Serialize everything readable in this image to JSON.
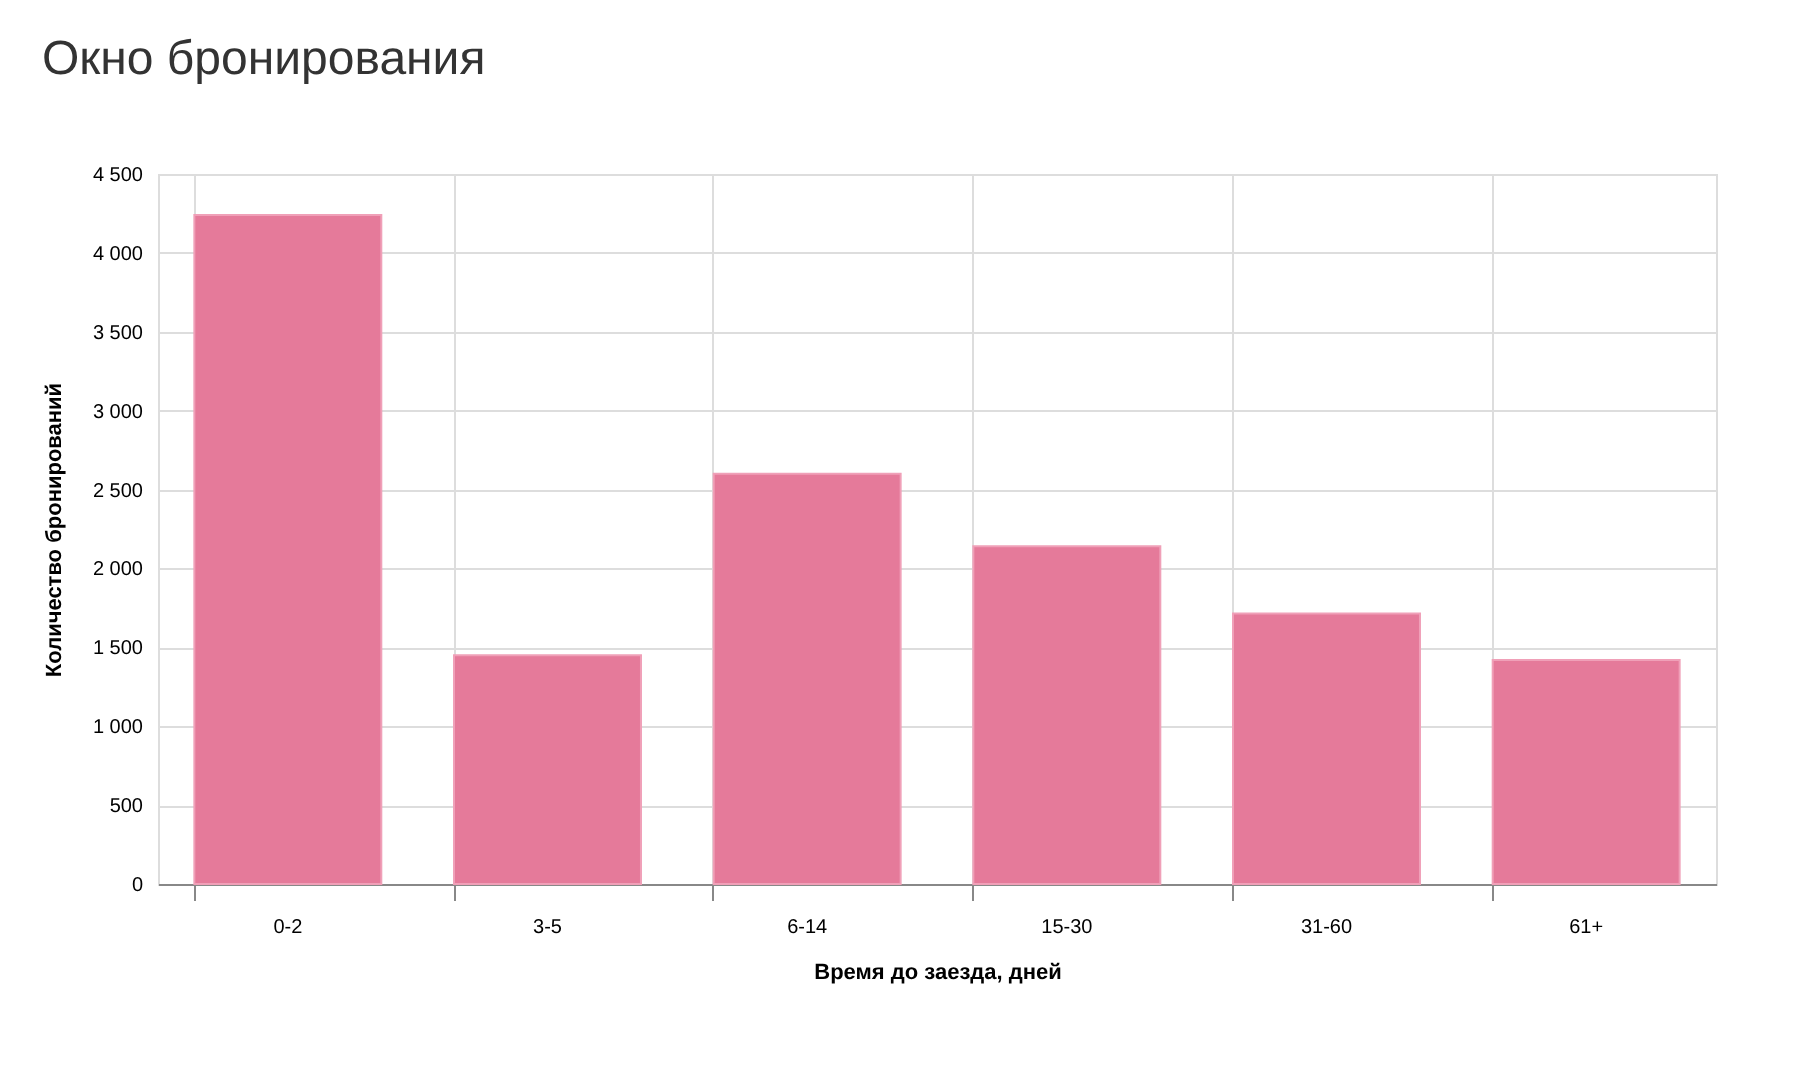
{
  "chart_data": {
    "type": "bar",
    "title": "Окно бронирования",
    "xlabel": "Время до заезда, дней",
    "ylabel": "Количество бронирований",
    "categories": [
      "0-2",
      "3-5",
      "6-14",
      "15-30",
      "31-60",
      "61+"
    ],
    "values": [
      4240,
      1450,
      2600,
      2140,
      1715,
      1420
    ],
    "color": "#e57a9a",
    "ylim": [
      0,
      4500
    ],
    "yticks": [
      0,
      500,
      {
        "value": 1000,
        "label": "1 000"
      },
      {
        "value": 1500,
        "label": "1 500"
      },
      {
        "value": 2000,
        "label": "2 000"
      },
      {
        "value": 2500,
        "label": "2 500"
      },
      {
        "value": 3000,
        "label": "3 000"
      },
      {
        "value": 3500,
        "label": "3 500"
      },
      {
        "value": 4000,
        "label": "4 000"
      },
      {
        "value": 4500,
        "label": "4 500"
      }
    ],
    "grid": true
  }
}
